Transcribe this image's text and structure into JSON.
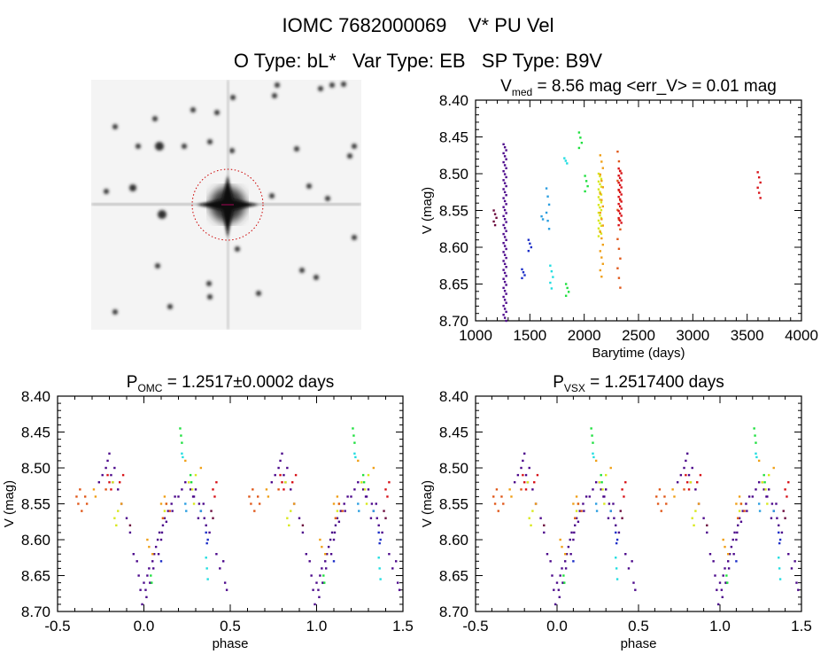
{
  "header": {
    "line1_id": "IOMC 7682000069",
    "line1_name": "V* PU Vel",
    "line2": "O Type: bL*   Var Type: EB   SP Type: B9V"
  },
  "colors": {
    "maroon": "#6b0a3c",
    "purple": "#4d0a8c",
    "blue": "#1c2fc8",
    "lightblue": "#2a9ee0",
    "cyan": "#22dde0",
    "green": "#20e040",
    "yellow": "#d8e81c",
    "orange": "#f0a018",
    "redorange": "#e0581a",
    "red": "#d8141a"
  },
  "chart_data": [
    {
      "type": "image",
      "title": "Finder chart",
      "marker": "red dashed circle around target"
    },
    {
      "type": "scatter",
      "title_prefix": "V",
      "title_sub": "med",
      "title_rest": " = 8.56 mag <err_V> = 0.01 mag",
      "xlabel": "Barytime (days)",
      "ylabel": "V (mag)",
      "xlim": [
        1000,
        4000
      ],
      "ylim": [
        8.4,
        8.7
      ],
      "y_inverted": true,
      "xticks": [
        "1000",
        "1500",
        "2000",
        "2500",
        "3000",
        "3500",
        "4000"
      ],
      "yticks": [
        "8.40",
        "8.45",
        "8.50",
        "8.55",
        "8.60",
        "8.65",
        "8.70"
      ],
      "clusters": [
        {
          "x": 1180,
          "vmin": 8.55,
          "vmax": 8.57,
          "n": 5,
          "color": "maroon"
        },
        {
          "x": 1270,
          "vmin": 8.46,
          "vmax": 8.7,
          "n": 60,
          "color": "purple"
        },
        {
          "x": 1440,
          "vmin": 8.63,
          "vmax": 8.642,
          "n": 4,
          "color": "blue"
        },
        {
          "x": 1500,
          "vmin": 8.59,
          "vmax": 8.605,
          "n": 4,
          "color": "blue"
        },
        {
          "x": 1620,
          "vmin": 8.558,
          "vmax": 8.562,
          "n": 2,
          "color": "lightblue"
        },
        {
          "x": 1665,
          "vmin": 8.52,
          "vmax": 8.575,
          "n": 6,
          "color": "lightblue"
        },
        {
          "x": 1700,
          "vmin": 8.625,
          "vmax": 8.656,
          "n": 5,
          "color": "cyan"
        },
        {
          "x": 1830,
          "vmin": 8.479,
          "vmax": 8.486,
          "n": 3,
          "color": "cyan"
        },
        {
          "x": 1845,
          "vmin": 8.65,
          "vmax": 8.666,
          "n": 4,
          "color": "green"
        },
        {
          "x": 1965,
          "vmin": 8.444,
          "vmax": 8.465,
          "n": 4,
          "color": "green"
        },
        {
          "x": 2020,
          "vmin": 8.503,
          "vmax": 8.524,
          "n": 4,
          "color": "green"
        },
        {
          "x": 2145,
          "vmin": 8.5,
          "vmax": 8.585,
          "n": 25,
          "color": "yellow"
        },
        {
          "x": 2160,
          "vmin": 8.475,
          "vmax": 8.64,
          "n": 20,
          "color": "orange"
        },
        {
          "x": 2320,
          "vmin": 8.47,
          "vmax": 8.655,
          "n": 15,
          "color": "redorange"
        },
        {
          "x": 2330,
          "vmin": 8.493,
          "vmax": 8.57,
          "n": 25,
          "color": "red"
        },
        {
          "x": 3610,
          "vmin": 8.498,
          "vmax": 8.533,
          "n": 6,
          "color": "red"
        }
      ]
    },
    {
      "type": "scatter",
      "title_prefix": "P",
      "title_sub": "OMC",
      "title_rest": " = 1.2517±0.0002 days",
      "xlabel": "phase",
      "ylabel": "V (mag)",
      "xlim": [
        -0.5,
        1.5
      ],
      "ylim": [
        8.4,
        8.7
      ],
      "y_inverted": true,
      "xticks": [
        "-0.5",
        "0.0",
        "0.5",
        "1.0",
        "1.5"
      ],
      "yticks": [
        "8.40",
        "8.45",
        "8.50",
        "8.55",
        "8.60",
        "8.65",
        "8.70"
      ]
    },
    {
      "type": "scatter",
      "title_prefix": "P",
      "title_sub": "VSX",
      "title_rest": " = 1.2517400 days",
      "xlabel": "phase",
      "ylabel": "V (mag)",
      "xlim": [
        -0.5,
        1.5
      ],
      "ylim": [
        8.4,
        8.7
      ],
      "y_inverted": true,
      "xticks": [
        "-0.5",
        "0.0",
        "0.5",
        "1.0",
        "1.5"
      ],
      "yticks": [
        "8.40",
        "8.45",
        "8.50",
        "8.55",
        "8.60",
        "8.65",
        "8.70"
      ]
    }
  ],
  "phase_series": [
    {
      "color": "purple",
      "points": [
        [
          0.0,
          8.66
        ],
        [
          0.01,
          8.67
        ],
        [
          0.02,
          8.65
        ],
        [
          0.03,
          8.64
        ],
        [
          0.04,
          8.66
        ],
        [
          0.05,
          8.63
        ],
        [
          0.06,
          8.62
        ],
        [
          0.07,
          8.61
        ],
        [
          0.08,
          8.6
        ],
        [
          0.09,
          8.59
        ],
        [
          0.1,
          8.6
        ],
        [
          0.11,
          8.58
        ],
        [
          0.12,
          8.57
        ],
        [
          0.13,
          8.575
        ],
        [
          0.14,
          8.56
        ],
        [
          0.16,
          8.55
        ],
        [
          0.18,
          8.54
        ],
        [
          0.2,
          8.54
        ],
        [
          0.22,
          8.53
        ],
        [
          0.24,
          8.52
        ],
        [
          0.26,
          8.52
        ],
        [
          0.27,
          8.53
        ],
        [
          0.29,
          8.54
        ],
        [
          0.3,
          8.53
        ],
        [
          0.32,
          8.55
        ],
        [
          0.33,
          8.56
        ],
        [
          0.35,
          8.57
        ],
        [
          0.36,
          8.58
        ],
        [
          0.38,
          8.59
        ],
        [
          0.42,
          8.62
        ],
        [
          0.44,
          8.64
        ],
        [
          0.46,
          8.63
        ],
        [
          0.47,
          8.66
        ],
        [
          0.48,
          8.67
        ],
        [
          0.74,
          8.52
        ],
        [
          0.76,
          8.51
        ],
        [
          0.78,
          8.5
        ],
        [
          0.79,
          8.49
        ],
        [
          0.8,
          8.48
        ],
        [
          0.81,
          8.51
        ],
        [
          0.82,
          8.52
        ],
        [
          0.83,
          8.5
        ],
        [
          0.85,
          8.53
        ],
        [
          0.87,
          8.55
        ],
        [
          0.9,
          8.57
        ],
        [
          0.92,
          8.59
        ],
        [
          0.94,
          8.62
        ],
        [
          0.96,
          8.63
        ],
        [
          0.97,
          8.65
        ],
        [
          0.98,
          8.67
        ],
        [
          0.99,
          8.69
        ],
        [
          0.015,
          8.68
        ],
        [
          0.035,
          8.66
        ],
        [
          0.055,
          8.64
        ],
        [
          0.085,
          8.62
        ],
        [
          0.105,
          8.59
        ],
        [
          0.165,
          8.56
        ],
        [
          0.285,
          8.54
        ],
        [
          0.315,
          8.57
        ],
        [
          0.345,
          8.55
        ]
      ]
    },
    {
      "color": "maroon",
      "points": [
        [
          0.39,
          8.56
        ],
        [
          0.4,
          8.57
        ],
        [
          0.92,
          8.58
        ]
      ]
    },
    {
      "color": "blue",
      "points": [
        [
          0.36,
          8.59
        ],
        [
          0.37,
          8.6
        ],
        [
          0.365,
          8.605
        ],
        [
          0.1,
          8.63
        ]
      ]
    },
    {
      "color": "lightblue",
      "points": [
        [
          0.33,
          8.56
        ],
        [
          0.24,
          8.55
        ],
        [
          0.245,
          8.56
        ]
      ]
    },
    {
      "color": "cyan",
      "points": [
        [
          0.36,
          8.625
        ],
        [
          0.365,
          8.64
        ],
        [
          0.37,
          8.655
        ],
        [
          0.22,
          8.48
        ],
        [
          0.225,
          8.485
        ]
      ]
    },
    {
      "color": "green",
      "points": [
        [
          0.21,
          8.445
        ],
        [
          0.215,
          8.455
        ],
        [
          0.22,
          8.465
        ],
        [
          0.04,
          8.65
        ],
        [
          0.045,
          8.66
        ],
        [
          0.27,
          8.51
        ],
        [
          0.275,
          8.52
        ]
      ]
    },
    {
      "color": "yellow",
      "points": [
        [
          0.83,
          8.57
        ],
        [
          0.84,
          8.58
        ],
        [
          0.85,
          8.56
        ],
        [
          0.26,
          8.52
        ],
        [
          0.28,
          8.53
        ],
        [
          0.3,
          8.51
        ],
        [
          0.11,
          8.57
        ],
        [
          0.12,
          8.56
        ],
        [
          0.13,
          8.55
        ],
        [
          0.29,
          8.55
        ],
        [
          0.82,
          8.52
        ]
      ]
    },
    {
      "color": "orange",
      "points": [
        [
          0.02,
          8.6
        ],
        [
          0.03,
          8.61
        ],
        [
          0.05,
          8.62
        ],
        [
          0.1,
          8.55
        ],
        [
          0.12,
          8.54
        ],
        [
          0.24,
          8.49
        ],
        [
          0.33,
          8.5
        ],
        [
          0.87,
          8.55
        ],
        [
          0.71,
          8.53
        ],
        [
          0.72,
          8.54
        ]
      ]
    },
    {
      "color": "redorange",
      "points": [
        [
          0.61,
          8.54
        ],
        [
          0.62,
          8.55
        ],
        [
          0.63,
          8.53
        ],
        [
          0.64,
          8.56
        ],
        [
          0.66,
          8.54
        ],
        [
          0.67,
          8.55
        ],
        [
          0.13,
          8.55
        ],
        [
          0.15,
          8.56
        ],
        [
          0.11,
          8.57
        ],
        [
          0.78,
          8.53
        ]
      ]
    },
    {
      "color": "red",
      "points": [
        [
          0.79,
          8.51
        ],
        [
          0.8,
          8.52
        ],
        [
          0.81,
          8.53
        ],
        [
          0.86,
          8.52
        ],
        [
          0.88,
          8.51
        ],
        [
          0.4,
          8.53
        ],
        [
          0.41,
          8.54
        ],
        [
          0.42,
          8.52
        ]
      ]
    }
  ]
}
